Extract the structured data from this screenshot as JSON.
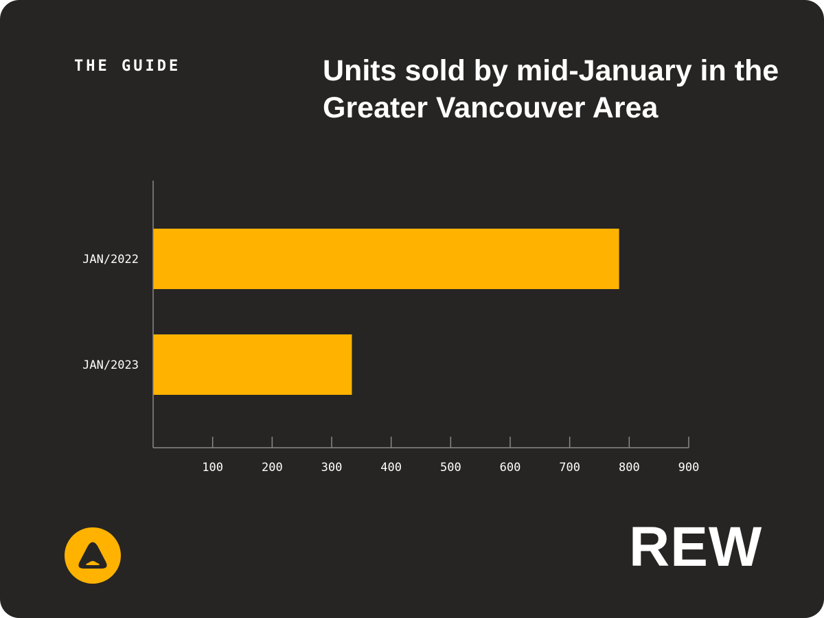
{
  "brand": {
    "eyebrow": "THE GUIDE",
    "wordmark": "REW",
    "logo_icon": "rounded-triangle-icon"
  },
  "colors": {
    "background": "#262524",
    "bar": "#FFB300",
    "text": "#FFFFFF",
    "axis": "#8A8986",
    "logo": "#FFB300"
  },
  "chart_data": {
    "type": "bar",
    "orientation": "horizontal",
    "title": "Units sold by mid-January in the Greater Vancouver Area",
    "categories": [
      "JAN/2022",
      "JAN/2023"
    ],
    "values": [
      783,
      334
    ],
    "xlim": [
      0,
      900
    ],
    "xticks": [
      100,
      200,
      300,
      400,
      500,
      600,
      700,
      800,
      900
    ],
    "grid": false,
    "legend": "none"
  }
}
